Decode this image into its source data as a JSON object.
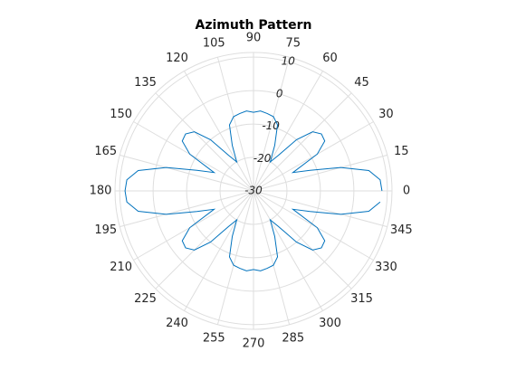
{
  "chart_data": {
    "type": "polar",
    "title": "Azimuth Pattern",
    "thetaticks": [
      0,
      15,
      30,
      45,
      60,
      75,
      90,
      105,
      120,
      135,
      150,
      165,
      180,
      195,
      210,
      225,
      240,
      255,
      270,
      285,
      300,
      315,
      330,
      345
    ],
    "rlim": [
      -30,
      11.4
    ],
    "rticks": [
      -30,
      -20,
      -10,
      0,
      10
    ],
    "rtick_angle": 75,
    "grid": true,
    "series": [
      {
        "color": "#0072bd",
        "theta": [
          0,
          5,
          10,
          15,
          20,
          25,
          30,
          35,
          40,
          45,
          50,
          55,
          60,
          65,
          70,
          75,
          80,
          85,
          90,
          95,
          100,
          105,
          110,
          115,
          120,
          125,
          130,
          135,
          140,
          145,
          150,
          155,
          160,
          165,
          170,
          175,
          180,
          185,
          190,
          195,
          200,
          205,
          210,
          215,
          220,
          225,
          230,
          235,
          240,
          245,
          250,
          255,
          260,
          265,
          270,
          275,
          280,
          285,
          290,
          295,
          300,
          305,
          310,
          315,
          320,
          325,
          330,
          335,
          340,
          345,
          350,
          355
        ],
        "values": [
          8.4,
          8,
          5,
          -3,
          -12,
          -17,
          -8,
          -4,
          -3.5,
          -5,
          -10,
          -17,
          -20,
          -15,
          -9,
          -7,
          -6.5,
          -6,
          -6.5,
          -6,
          -6.5,
          -7,
          -9,
          -15,
          -20,
          -17,
          -10,
          -5,
          -3.5,
          -4,
          -8,
          -17,
          -12,
          -3,
          5,
          8,
          8.4,
          8,
          5,
          -3,
          -12,
          -17,
          -8,
          -4,
          -3.5,
          -5,
          -10,
          -17,
          -20,
          -15,
          -9,
          -7,
          -6.5,
          -6,
          -6.5,
          -6,
          -6.5,
          -7,
          -9,
          -15,
          -20,
          -17,
          -10,
          -5,
          -3.5,
          -4,
          -8,
          -17,
          -12,
          -3,
          5,
          8
        ]
      }
    ]
  }
}
